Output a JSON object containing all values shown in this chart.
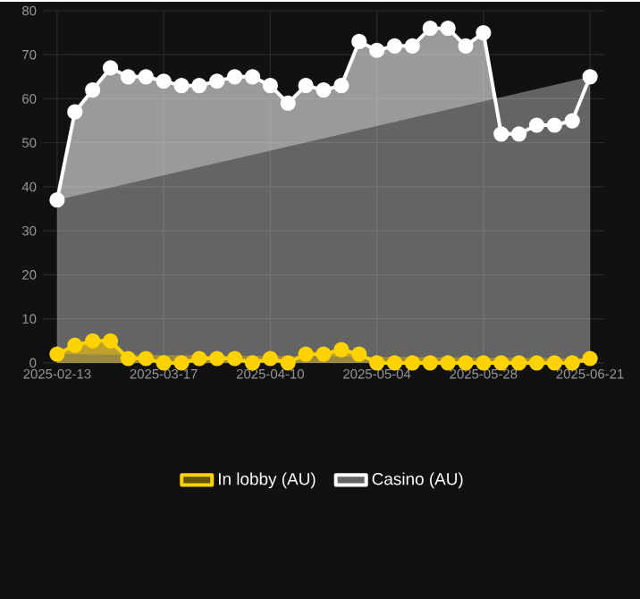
{
  "chart_data": {
    "type": "area",
    "categories": [
      "2025-02-13",
      null,
      null,
      null,
      null,
      null,
      "2025-03-17",
      null,
      null,
      null,
      null,
      null,
      "2025-04-10",
      null,
      null,
      null,
      null,
      null,
      "2025-05-04",
      null,
      null,
      null,
      null,
      null,
      "2025-05-28",
      null,
      null,
      null,
      null,
      null,
      "2025-06-21"
    ],
    "series": [
      {
        "name": "In lobby (AU)",
        "color": "#ffd200",
        "values": [
          2,
          4,
          5,
          5,
          1,
          1,
          0,
          0,
          1,
          1,
          1,
          0,
          1,
          0,
          2,
          2,
          3,
          2,
          0,
          0,
          0,
          0,
          0,
          0,
          0,
          0,
          0,
          0,
          0,
          0,
          1
        ]
      },
      {
        "name": "Casino (AU)",
        "color": "#ffffff",
        "values": [
          37,
          57,
          62,
          67,
          65,
          65,
          64,
          63,
          63,
          64,
          65,
          65,
          63,
          59,
          63,
          62,
          63,
          73,
          71,
          72,
          72,
          76,
          76,
          72,
          75,
          52,
          52,
          54,
          54,
          55,
          65
        ]
      }
    ],
    "ylim": [
      0,
      80
    ],
    "yticks": [
      0,
      10,
      20,
      30,
      40,
      50,
      60,
      70,
      80
    ],
    "grid": true,
    "legend": "bottom",
    "marker": "circle"
  }
}
